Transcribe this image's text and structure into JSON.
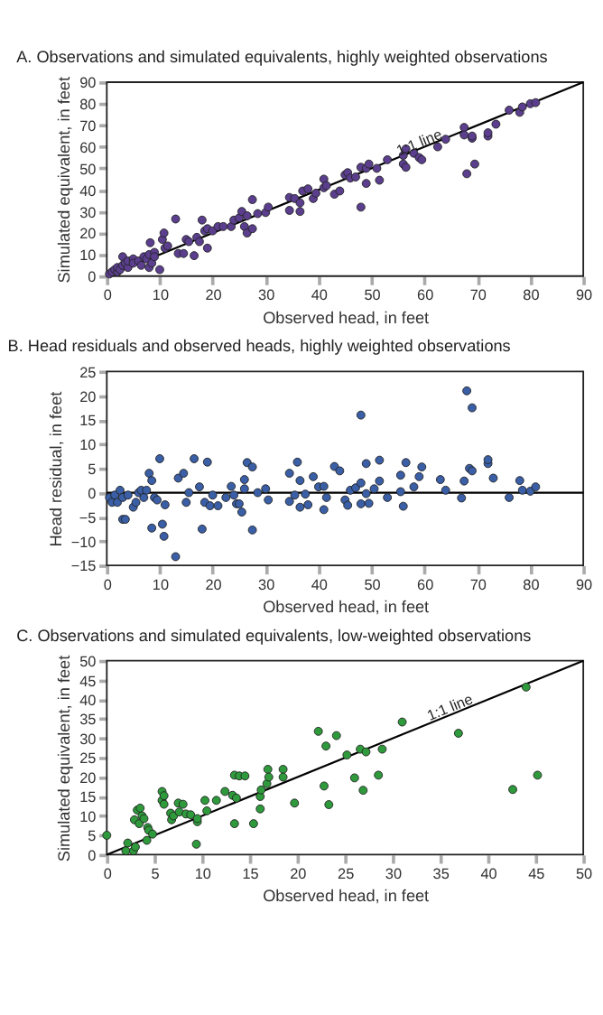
{
  "chart_data": [
    {
      "type": "scatter",
      "title": "A.   Observations and simulated equivalents, highly weighted observations",
      "xlabel": "Observed head, in feet",
      "ylabel": "Simulated equivalent, in feet",
      "xlim": [
        0,
        90
      ],
      "xticks": [
        0,
        10,
        20,
        30,
        40,
        50,
        60,
        70,
        80,
        90
      ],
      "ylim": [
        0,
        90
      ],
      "yticks": [
        0,
        10,
        20,
        30,
        40,
        50,
        60,
        70,
        80,
        90
      ],
      "grid": false,
      "annotations": [
        {
          "text": "1:1 line",
          "x": 59,
          "y": 62
        }
      ],
      "series": [
        {
          "marker": "circle",
          "color": "#5b3f8e",
          "x": [
            0.5,
            1,
            1.5,
            2,
            2,
            2.5,
            3,
            3,
            3.5,
            4,
            4,
            5,
            5,
            6,
            6.5,
            7,
            7.5,
            8,
            8,
            8.2,
            8.5,
            9,
            9,
            10,
            10.5,
            10.8,
            11,
            11.5,
            13,
            13.5,
            14.5,
            15,
            15.5,
            16.5,
            17,
            17.5,
            18,
            18.5,
            19,
            19,
            20,
            21,
            22,
            23.5,
            24,
            25,
            25.5,
            26,
            26.5,
            26.5,
            27.5,
            27.5,
            28.5,
            30,
            30.5,
            34.5,
            34.5,
            35.5,
            36.5,
            36.5,
            37,
            38,
            39,
            39.5,
            41,
            41,
            41.5,
            43,
            44,
            45,
            45.5,
            46,
            47,
            48,
            48,
            49,
            49.5,
            49,
            51,
            51.5,
            53,
            56,
            56,
            56.5,
            56.5,
            58,
            59,
            59.5,
            62.5,
            64,
            67.5,
            67.5,
            68,
            69,
            69,
            69.5,
            72,
            72,
            73.5,
            76,
            78,
            78.5,
            80,
            81
          ],
          "values": [
            1,
            2,
            3,
            2,
            4,
            3,
            5,
            9,
            6,
            4,
            7,
            8,
            6,
            7,
            5,
            9,
            8,
            10,
            4,
            15.5,
            6,
            11,
            9,
            3,
            17,
            20,
            13,
            14,
            26.5,
            10.5,
            10.5,
            17,
            16,
            9.5,
            18,
            16,
            26,
            21,
            13,
            22,
            21,
            23,
            23,
            23,
            26,
            27,
            30,
            23,
            20,
            28,
            22,
            35.5,
            29,
            29.5,
            32,
            30.5,
            36.5,
            36,
            30,
            34,
            39.5,
            40.5,
            36,
            38.5,
            45,
            41,
            42,
            38,
            39.5,
            47,
            48,
            45.5,
            46,
            32,
            50.5,
            50,
            52,
            43,
            50,
            44.5,
            54,
            56,
            52,
            59,
            50.5,
            57,
            55,
            54,
            60,
            63.5,
            69,
            65.5,
            47.5,
            64,
            65,
            52,
            65,
            66.5,
            70.5,
            77,
            76,
            78.5,
            80,
            80.5
          ]
        },
        {
          "type": "line",
          "marker": "none",
          "color": "#000000",
          "x": [
            0,
            90
          ],
          "values": [
            0,
            90
          ]
        }
      ]
    },
    {
      "type": "scatter",
      "title": "B.   Head residuals and observed heads, highly weighted observations",
      "xlabel": "Observed head, in feet",
      "ylabel": "Head residual, in feet",
      "xlim": [
        0,
        90
      ],
      "xticks": [
        0,
        10,
        20,
        30,
        40,
        50,
        60,
        70,
        80,
        90
      ],
      "ylim": [
        -15,
        25
      ],
      "yticks": [
        -15,
        -10,
        -5,
        0,
        5,
        10,
        15,
        20,
        25
      ],
      "grid": false,
      "marker": "circle",
      "ref_lines": [
        {
          "axis": "y",
          "value": 0,
          "color": "#000000"
        }
      ],
      "series": [
        {
          "color": "#3a5fa6",
          "x": [
            0.5,
            1,
            1.5,
            2,
            2.5,
            3,
            3,
            3.5,
            4,
            5,
            5.5,
            6,
            6.5,
            7,
            7.5,
            8,
            8.5,
            8.5,
            9,
            9.5,
            10,
            10.5,
            10.8,
            11,
            13,
            13.5,
            14.5,
            15,
            15.5,
            16.5,
            17.5,
            18,
            18.5,
            19,
            19.5,
            20,
            21,
            22.5,
            23.5,
            24,
            24.5,
            25,
            25.5,
            26,
            26,
            26.5,
            27.5,
            27.5,
            28.5,
            30,
            30.5,
            34.5,
            34.5,
            35.5,
            36,
            36.5,
            36.5,
            37.5,
            38,
            39,
            40,
            41,
            41,
            41.5,
            43,
            44,
            45,
            45.5,
            46,
            47,
            48,
            48,
            48,
            49,
            49,
            49.5,
            50.5,
            51.5,
            51.5,
            53,
            55.5,
            55.5,
            56,
            56.5,
            58,
            59,
            59.5,
            63,
            64,
            67,
            67.5,
            68,
            68.5,
            69,
            69,
            72,
            72,
            73,
            76,
            78,
            78.5,
            80,
            81
          ],
          "values": [
            -1,
            -2,
            -0.5,
            -2,
            0.5,
            -1,
            -5.5,
            -5.5,
            -0.5,
            -3,
            -2,
            0,
            0.5,
            -1,
            0.5,
            4,
            -7.3,
            2.5,
            -1,
            -1.5,
            7,
            -6.5,
            -9,
            -2.5,
            -13.2,
            3,
            4,
            -2,
            0,
            7,
            1.2,
            -7.5,
            -2,
            6.3,
            -2.7,
            -0.5,
            -2.7,
            -1,
            1.3,
            -0.5,
            -2.3,
            -2.3,
            -4,
            2.7,
            0.8,
            6.2,
            5.3,
            -7.7,
            0,
            0.8,
            -1.5,
            4,
            -1.8,
            -0.5,
            6.3,
            2.5,
            -3,
            -0.3,
            -2.5,
            3.3,
            1.2,
            -3.5,
            1.3,
            -1,
            5.4,
            4.5,
            -1.5,
            -2.6,
            0.5,
            1,
            16,
            2,
            -2.3,
            6,
            -0.2,
            -2.2,
            0.8,
            6.7,
            2.4,
            -1,
            3.6,
            0.2,
            -2.8,
            6.2,
            1.2,
            3.3,
            5.3,
            2.7,
            0.5,
            -1.1,
            2.4,
            21,
            5,
            4.5,
            17.5,
            6,
            6.8,
            3,
            -1,
            2.5,
            0.5,
            0.3,
            1.2
          ]
        }
      ]
    },
    {
      "type": "scatter",
      "title": "C.   Observations and simulated equivalents, low-weighted observations",
      "xlabel": "Observed head, in feet",
      "ylabel": "Simulated equivalent, in feet",
      "xlim": [
        0,
        50
      ],
      "xticks": [
        0,
        5,
        10,
        15,
        20,
        25,
        30,
        35,
        40,
        45,
        50
      ],
      "ylim": [
        0,
        50
      ],
      "yticks": [
        0,
        5,
        10,
        15,
        20,
        25,
        30,
        35,
        40,
        45,
        50
      ],
      "grid": false,
      "annotations": [
        {
          "text": "1:1 line",
          "x": 36,
          "y": 38
        }
      ],
      "series": [
        {
          "marker": "circle",
          "color": "#2e9a3c",
          "x": [
            0,
            2,
            2.2,
            2.8,
            2.9,
            3,
            3.2,
            3.4,
            3.5,
            3.7,
            3.9,
            4.2,
            4.3,
            4.4,
            4.8,
            5.8,
            5.8,
            6,
            6,
            6.7,
            6.8,
            7,
            7.5,
            7.6,
            8,
            8.3,
            8.8,
            9.4,
            9.5,
            9.5,
            10.3,
            10.5,
            11.5,
            12.4,
            13.2,
            13.4,
            13.4,
            13.6,
            13.9,
            14.5,
            15.4,
            16.1,
            16.1,
            16.2,
            16.8,
            16.9,
            17,
            18.5,
            18.5,
            19.7,
            22.2,
            22.8,
            23,
            23.3,
            24.1,
            25.2,
            26,
            26.6,
            26.9,
            27.2,
            28.5,
            28.9,
            31,
            36.9,
            42.6,
            44,
            45.2
          ],
          "values": [
            5,
            1,
            3,
            1,
            9,
            2,
            11.5,
            8,
            12,
            10,
            9.3,
            3.7,
            7,
            6.3,
            5.3,
            16.3,
            14,
            15.2,
            13,
            10.7,
            9,
            10,
            13.3,
            11,
            13,
            10.5,
            10.3,
            2.7,
            8.5,
            9.3,
            14,
            11.3,
            14,
            16.3,
            15.3,
            20.5,
            8,
            14.6,
            20.3,
            20.3,
            8,
            15,
            11.8,
            16.7,
            18.3,
            22,
            20,
            22,
            20,
            13.3,
            31.8,
            17.7,
            28,
            12.9,
            30.7,
            25.7,
            19.8,
            27.2,
            16.6,
            26.5,
            20.5,
            27.2,
            34.2,
            31.3,
            16.8,
            43.2,
            20.5
          ]
        },
        {
          "type": "line",
          "marker": "none",
          "color": "#000000",
          "x": [
            0,
            50
          ],
          "values": [
            0,
            50
          ]
        }
      ]
    }
  ]
}
